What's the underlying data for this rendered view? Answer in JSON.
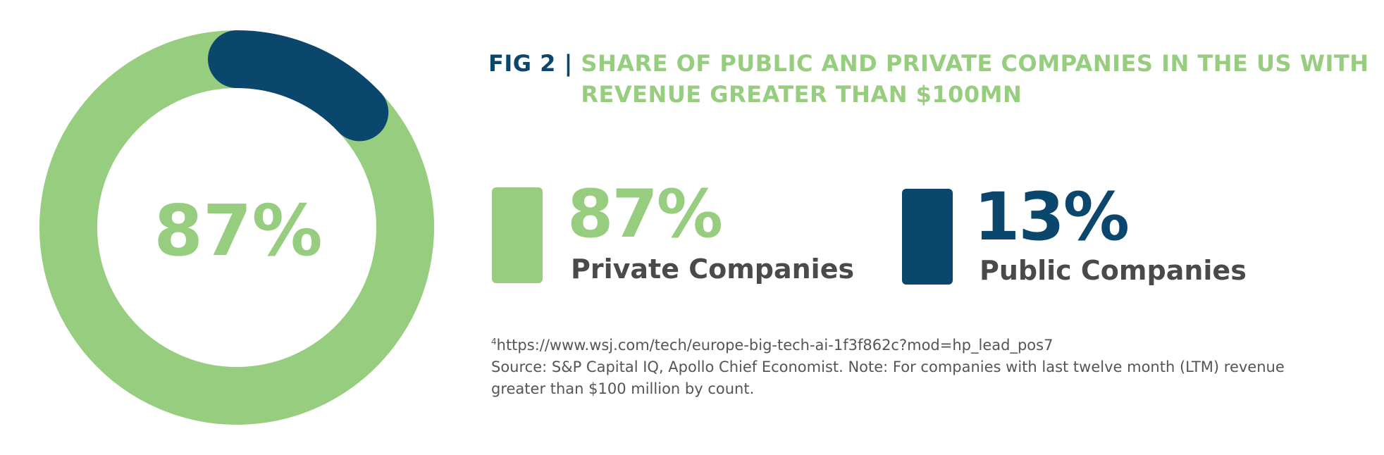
{
  "chart_data": {
    "type": "pie",
    "style": "donut",
    "categories": [
      "Private Companies",
      "Public Companies"
    ],
    "values": [
      87,
      13
    ],
    "value_labels": [
      "87%",
      "13%"
    ],
    "colors": [
      "#97cd7e",
      "#0b466d"
    ],
    "center_label": "87%",
    "title_prefix": "FIG 2 | ",
    "title": "SHARE OF PUBLIC AND PRIVATE COMPANIES IN THE US WITH REVENUE GREATER THAN $100MN",
    "legend": "right"
  },
  "footnote": {
    "marker": "4",
    "url": "https://www.wsj.com/tech/europe-big-tech-ai-1f3f862c?mod=hp_lead_pos7",
    "source": "Source: S&P Capital IQ, Apollo Chief Economist. Note: For companies with last twelve month (LTM) revenue greater than $100 million by count."
  }
}
